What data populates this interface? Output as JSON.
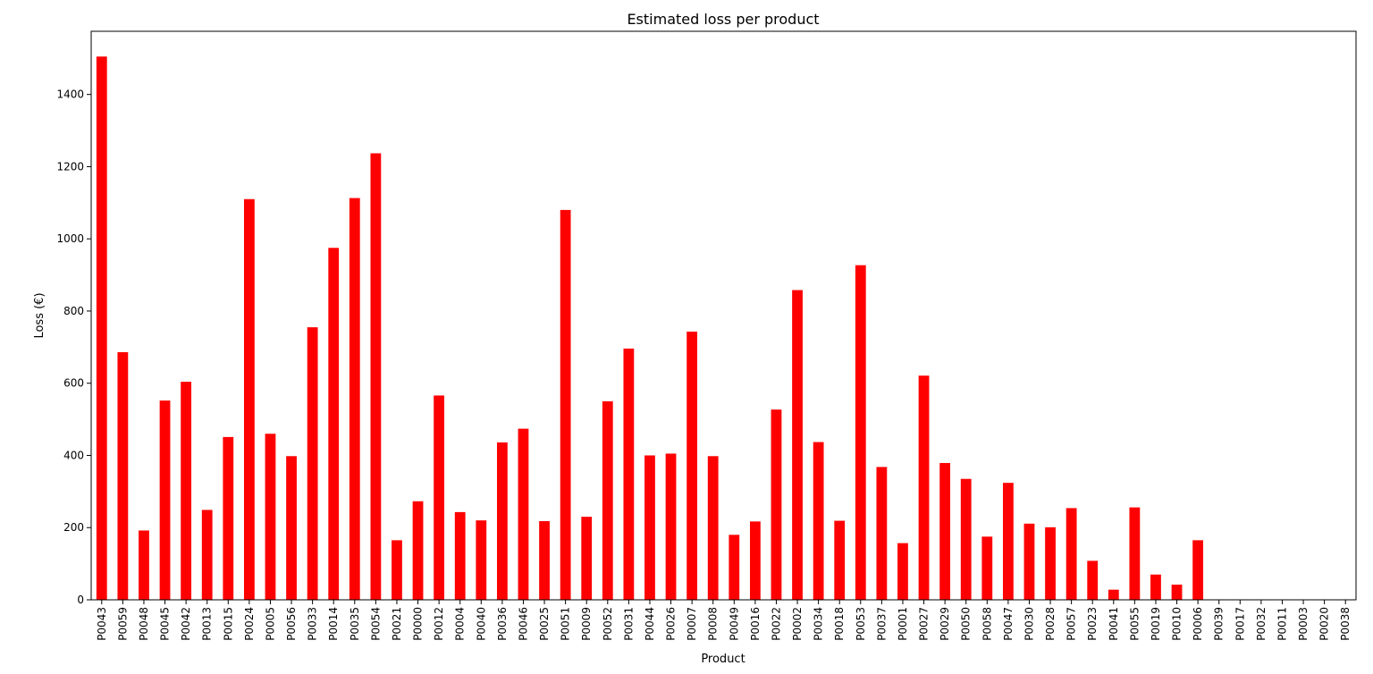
{
  "chart_data": {
    "type": "bar",
    "title": "Estimated loss per product",
    "xlabel": "Product",
    "ylabel": "Loss (€)",
    "ylim": [
      0,
      1575
    ],
    "yticks": [
      0,
      200,
      400,
      600,
      800,
      1000,
      1200,
      1400
    ],
    "grid": false,
    "legend": "none",
    "bar_color": "#ff0000",
    "categories": [
      "P0043",
      "P0059",
      "P0048",
      "P0045",
      "P0042",
      "P0013",
      "P0015",
      "P0024",
      "P0005",
      "P0056",
      "P0033",
      "P0014",
      "P0035",
      "P0054",
      "P0021",
      "P0000",
      "P0012",
      "P0004",
      "P0040",
      "P0036",
      "P0046",
      "P0025",
      "P0051",
      "P0009",
      "P0052",
      "P0031",
      "P0044",
      "P0026",
      "P0007",
      "P0008",
      "P0049",
      "P0016",
      "P0022",
      "P0002",
      "P0034",
      "P0018",
      "P0053",
      "P0037",
      "P0001",
      "P0027",
      "P0029",
      "P0050",
      "P0058",
      "P0047",
      "P0030",
      "P0028",
      "P0057",
      "P0023",
      "P0041",
      "P0055",
      "P0019",
      "P0010",
      "P0006",
      "P0039",
      "P0017",
      "P0032",
      "P0011",
      "P0003",
      "P0020",
      "P0038"
    ],
    "values": [
      1505,
      686,
      192,
      552,
      604,
      249,
      451,
      1110,
      460,
      398,
      755,
      975,
      1113,
      1237,
      165,
      273,
      566,
      243,
      220,
      436,
      474,
      218,
      1080,
      230,
      550,
      696,
      400,
      405,
      743,
      398,
      180,
      217,
      527,
      858,
      437,
      219,
      927,
      368,
      157,
      621,
      379,
      335,
      175,
      324,
      211,
      201,
      254,
      108,
      28,
      256,
      70,
      42,
      165,
      0,
      0,
      0,
      0,
      0,
      0,
      0
    ]
  }
}
